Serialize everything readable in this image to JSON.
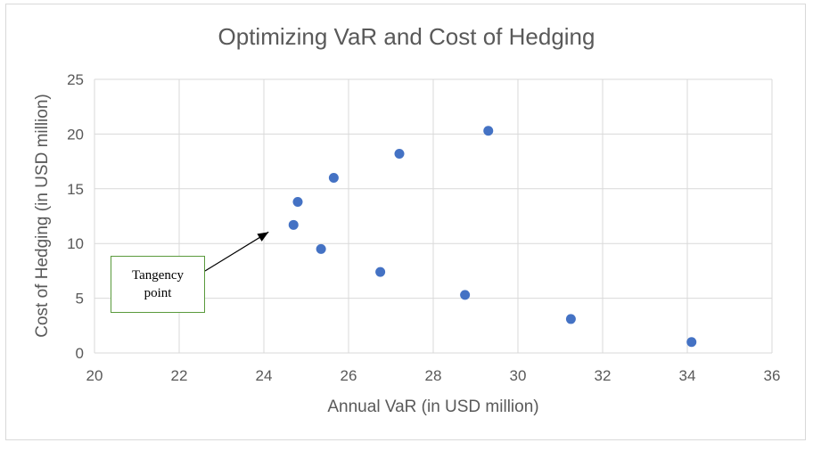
{
  "chart_data": {
    "type": "scatter",
    "title": "Optimizing VaR and Cost of Hedging",
    "xlabel": "Annual VaR (in USD million)",
    "ylabel": "Cost of Hedging (in USD million)",
    "xlim": [
      20,
      36
    ],
    "ylim": [
      0,
      25
    ],
    "xticks": [
      "20",
      "22",
      "24",
      "26",
      "28",
      "30",
      "32",
      "34",
      "36"
    ],
    "yticks": [
      "0",
      "5",
      "10",
      "15",
      "20",
      "25"
    ],
    "grid": true,
    "points": [
      {
        "x": 24.7,
        "y": 11.7
      },
      {
        "x": 24.8,
        "y": 13.8
      },
      {
        "x": 25.35,
        "y": 9.5
      },
      {
        "x": 25.65,
        "y": 16.0
      },
      {
        "x": 26.75,
        "y": 7.4
      },
      {
        "x": 27.2,
        "y": 18.2
      },
      {
        "x": 28.75,
        "y": 5.3
      },
      {
        "x": 29.3,
        "y": 20.3
      },
      {
        "x": 31.25,
        "y": 3.1
      },
      {
        "x": 34.1,
        "y": 1.0
      }
    ],
    "annotation": {
      "text": "Tangency\npoint",
      "target": {
        "x": 24.7,
        "y": 11.7
      }
    },
    "colors": {
      "marker": "#4472c4",
      "grid": "#d9d9d9",
      "text": "#595959",
      "callout_border": "#5a9a3c"
    }
  }
}
